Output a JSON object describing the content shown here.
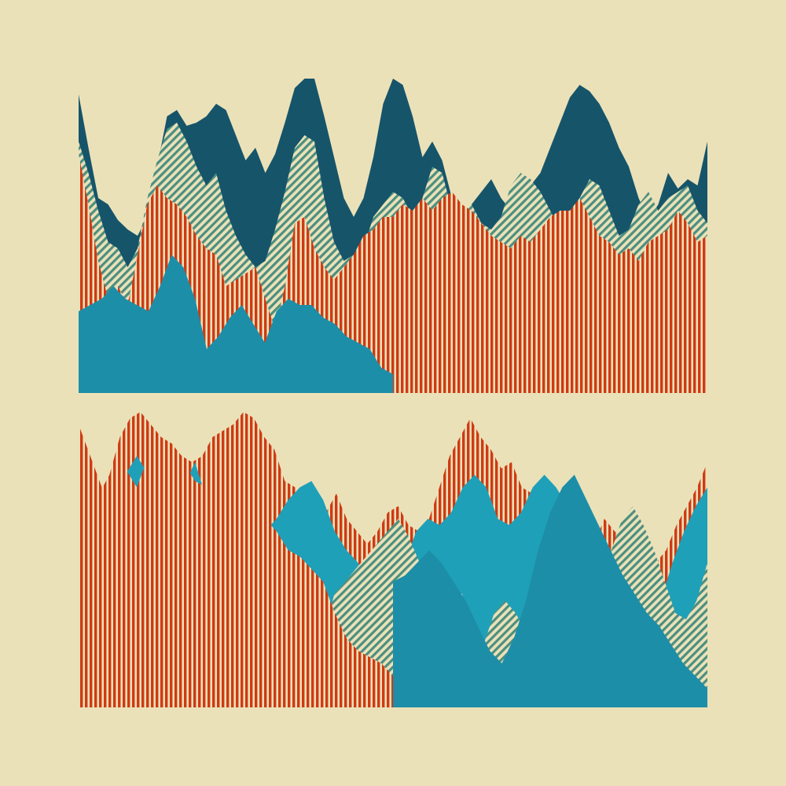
{
  "canvas": {
    "background": "#ebe1b8"
  },
  "palette": {
    "navy": "#16546a",
    "teal": "#1d8ea8",
    "teal_light": "#1fa0b9",
    "red": "#cf3a13",
    "cream": "#ebe1b8",
    "stripe_green": "#4c8f80"
  },
  "panels": [
    {
      "name": "top-panel",
      "layers": [
        {
          "name": "navy-ridge-layer",
          "fill": "navy",
          "pattern": "solid",
          "profile": [
            0.95,
            0.78,
            0.62,
            0.6,
            0.55,
            0.52,
            0.5,
            0.56,
            0.72,
            0.88,
            0.9,
            0.85,
            0.86,
            0.88,
            0.92,
            0.9,
            0.82,
            0.74,
            0.78,
            0.7,
            0.76,
            0.86,
            0.97,
            1.0,
            1.0,
            0.88,
            0.75,
            0.62,
            0.56,
            0.62,
            0.75,
            0.92,
            1.0,
            0.98,
            0.88,
            0.75,
            0.8,
            0.74,
            0.62,
            0.55,
            0.6,
            0.64,
            0.68,
            0.62,
            0.58,
            0.6,
            0.66,
            0.7,
            0.78,
            0.86,
            0.94,
            0.98,
            0.96,
            0.92,
            0.86,
            0.78,
            0.72,
            0.62,
            0.55,
            0.6,
            0.7,
            0.65,
            0.68,
            0.66,
            0.8
          ]
        },
        {
          "name": "striped-green-layer",
          "fill": "stripe_green",
          "pattern": "diagonal",
          "profile": [
            0.8,
            0.7,
            0.58,
            0.48,
            0.46,
            0.4,
            0.46,
            0.62,
            0.74,
            0.84,
            0.86,
            0.8,
            0.72,
            0.66,
            0.7,
            0.58,
            0.5,
            0.44,
            0.4,
            0.42,
            0.52,
            0.64,
            0.78,
            0.82,
            0.8,
            0.62,
            0.48,
            0.42,
            0.44,
            0.46,
            0.56,
            0.6,
            0.64,
            0.62,
            0.56,
            0.62,
            0.72,
            0.7,
            0.58,
            0.56,
            0.6,
            0.54,
            0.52,
            0.56,
            0.66,
            0.7,
            0.68,
            0.64,
            0.58,
            0.52,
            0.56,
            0.62,
            0.68,
            0.66,
            0.58,
            0.5,
            0.52,
            0.6,
            0.64,
            0.58,
            0.62,
            0.64,
            0.66,
            0.58,
            0.54
          ]
        },
        {
          "name": "red-vertical-stripe-layer",
          "fill": "red",
          "pattern": "vertical",
          "profile": [
            0.76,
            0.6,
            0.42,
            0.3,
            0.34,
            0.28,
            0.44,
            0.6,
            0.66,
            0.62,
            0.6,
            0.56,
            0.5,
            0.46,
            0.44,
            0.34,
            0.36,
            0.38,
            0.4,
            0.3,
            0.2,
            0.34,
            0.54,
            0.56,
            0.46,
            0.4,
            0.36,
            0.4,
            0.44,
            0.5,
            0.52,
            0.56,
            0.56,
            0.6,
            0.58,
            0.62,
            0.58,
            0.62,
            0.64,
            0.6,
            0.58,
            0.54,
            0.5,
            0.48,
            0.46,
            0.5,
            0.48,
            0.52,
            0.56,
            0.58,
            0.58,
            0.62,
            0.56,
            0.5,
            0.48,
            0.44,
            0.46,
            0.42,
            0.48,
            0.5,
            0.52,
            0.58,
            0.54,
            0.48,
            0.5
          ],
          "split_at": 0.5
        },
        {
          "name": "teal-base-layer",
          "fill": "teal",
          "pattern": "solid",
          "profile": [
            0.26,
            0.28,
            0.3,
            0.34,
            0.3,
            0.28,
            0.26,
            0.34,
            0.44,
            0.4,
            0.3,
            0.14,
            0.18,
            0.24,
            0.28,
            0.22,
            0.16,
            0.26,
            0.3,
            0.28,
            0.28,
            0.24,
            0.22,
            0.18,
            0.16,
            0.14,
            0.08,
            0.06
          ],
          "end_at": 0.5
        }
      ]
    },
    {
      "name": "bottom-panel",
      "layers": [
        {
          "name": "red-vertical-stripe-upper-layer",
          "fill": "red",
          "pattern": "vertical",
          "profile": [
            0.82,
            0.7,
            0.68,
            0.74,
            0.86,
            0.92,
            0.94,
            0.9,
            0.86,
            0.84,
            0.8,
            0.78,
            0.8,
            0.86,
            0.88,
            0.9,
            0.94,
            0.92,
            0.86,
            0.82,
            0.72,
            0.7,
            0.66,
            0.66,
            0.62,
            0.68,
            0.6,
            0.56,
            0.52,
            0.56,
            0.62,
            0.64,
            0.58,
            0.56,
            0.6,
            0.7,
            0.8,
            0.86,
            0.92,
            0.86,
            0.82,
            0.76,
            0.78,
            0.7,
            0.68,
            0.64,
            0.66,
            0.62,
            0.56,
            0.48,
            0.52,
            0.6,
            0.56,
            0.54,
            0.5,
            0.48,
            0.46,
            0.5,
            0.58,
            0.64,
            0.7,
            0.78
          ]
        },
        {
          "name": "teal-light-mid-layer",
          "fill": "teal_light",
          "pattern": "solid",
          "profile": [
            0.64,
            0.6,
            0.62,
            0.68,
            0.74,
            0.8,
            0.74,
            0.66,
            0.62,
            0.7,
            0.78,
            0.66,
            0.62,
            0.58,
            0.64,
            0.6,
            0.56,
            0.6,
            0.66,
            0.7,
            0.72,
            0.66,
            0.56,
            0.5,
            0.46,
            0.4,
            0.34,
            0.3,
            0.46,
            0.56,
            0.6,
            0.58,
            0.62,
            0.7,
            0.74,
            0.7,
            0.6,
            0.58,
            0.62,
            0.7,
            0.74,
            0.7,
            0.64,
            0.6,
            0.5,
            0.42,
            0.38,
            0.32,
            0.28,
            0.26,
            0.34,
            0.46,
            0.56,
            0.64,
            0.7
          ]
        },
        {
          "name": "striped-green-mid-layer",
          "fill": "stripe_green",
          "pattern": "diagonal",
          "profile": [
            0.56,
            0.52,
            0.5,
            0.54,
            0.62,
            0.66,
            0.6,
            0.54,
            0.56,
            0.62,
            0.66,
            0.52,
            0.42,
            0.34,
            0.4,
            0.48,
            0.5,
            0.46,
            0.38,
            0.4,
            0.44,
            0.38,
            0.28,
            0.24,
            0.36,
            0.4,
            0.44,
            0.48,
            0.52,
            0.56,
            0.6,
            0.54,
            0.46,
            0.44,
            0.4,
            0.38,
            0.36,
            0.26,
            0.2,
            0.3,
            0.34,
            0.3,
            0.24,
            0.18,
            0.12,
            0.16,
            0.2,
            0.26,
            0.34,
            0.42,
            0.5,
            0.6,
            0.64,
            0.58,
            0.5,
            0.4,
            0.3,
            0.28,
            0.34,
            0.46
          ]
        },
        {
          "name": "red-vertical-stripe-lower-layer",
          "fill": "red",
          "pattern": "vertical",
          "profile": [
            0.9,
            0.8,
            0.7,
            0.72,
            0.76,
            0.7,
            0.8,
            0.82,
            0.84,
            0.78,
            0.72,
            0.7,
            0.74,
            0.72,
            0.68,
            0.66,
            0.6,
            0.56,
            0.5,
            0.48,
            0.44,
            0.4,
            0.3,
            0.22,
            0.18,
            0.16,
            0.14,
            0.1
          ],
          "end_at": 0.5
        },
        {
          "name": "teal-base-layer",
          "fill": "teal",
          "pattern": "solid",
          "profile": [
            0.4,
            0.42,
            0.46,
            0.5,
            0.46,
            0.4,
            0.34,
            0.26,
            0.18,
            0.14,
            0.22,
            0.34,
            0.5,
            0.62,
            0.7,
            0.74,
            0.66,
            0.58,
            0.5,
            0.42,
            0.36,
            0.3,
            0.26,
            0.2,
            0.14,
            0.1,
            0.06
          ],
          "start_at": 0.5
        }
      ]
    }
  ]
}
